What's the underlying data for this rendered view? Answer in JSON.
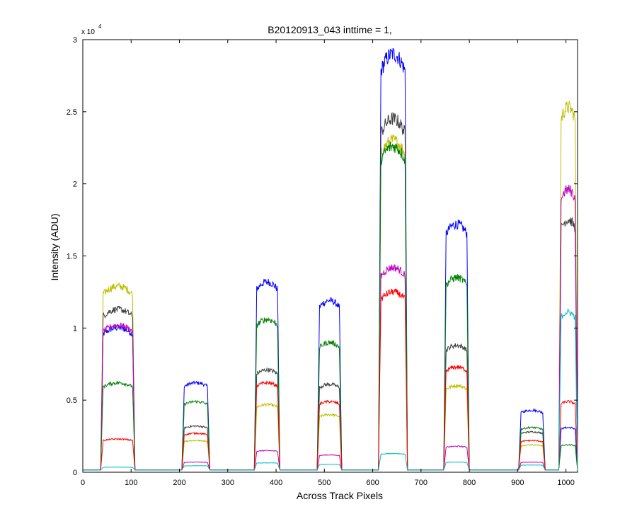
{
  "chart_data": {
    "type": "line",
    "title": "B20120913_043 inttime = 1,",
    "xlabel": "Across Track Pixels",
    "ylabel": "Intensity (ADU)",
    "y_multiplier_label": "x 10",
    "y_multiplier_exponent": "4",
    "xlim": [
      0,
      1024
    ],
    "ylim": [
      0,
      30000
    ],
    "xticks": [
      0,
      100,
      200,
      300,
      400,
      500,
      600,
      700,
      800,
      900,
      1000
    ],
    "yticks": [
      0,
      5000,
      10000,
      15000,
      20000,
      25000,
      30000
    ],
    "ytick_labels": [
      "0",
      "0.5",
      "1",
      "1.5",
      "2",
      "2.5",
      "3"
    ],
    "grid": false,
    "legend": "none",
    "baseline": 150,
    "bands": [
      {
        "start": 37,
        "end": 108
      },
      {
        "start": 205,
        "end": 263
      },
      {
        "start": 355,
        "end": 408
      },
      {
        "start": 485,
        "end": 536
      },
      {
        "start": 612,
        "end": 672
      },
      {
        "start": 747,
        "end": 800
      },
      {
        "start": 902,
        "end": 957
      },
      {
        "start": 985,
        "end": 1024
      }
    ],
    "series": [
      {
        "color": "#0000ff",
        "peaks": [
          10000,
          6200,
          13200,
          11900,
          29000,
          17200,
          4300,
          3100
        ]
      },
      {
        "color": "#bfbf00",
        "peaks": [
          12900,
          2200,
          4700,
          4000,
          23000,
          6000,
          1900,
          25300
        ]
      },
      {
        "color": "#404040",
        "peaks": [
          11300,
          3200,
          7100,
          6100,
          24500,
          8800,
          2800,
          17500
        ]
      },
      {
        "color": "#bf00bf",
        "peaks": [
          10200,
          700,
          1500,
          1200,
          14200,
          1800,
          700,
          19600
        ]
      },
      {
        "color": "#008000",
        "peaks": [
          6200,
          4900,
          10600,
          9000,
          22600,
          13500,
          3100,
          1900
        ]
      },
      {
        "color": "#ff0000",
        "peaks": [
          2300,
          2700,
          6200,
          4900,
          12500,
          7300,
          2200,
          4900
        ]
      },
      {
        "color": "#00bfbf",
        "peaks": [
          350,
          450,
          650,
          550,
          1300,
          700,
          500,
          11100
        ]
      }
    ]
  }
}
